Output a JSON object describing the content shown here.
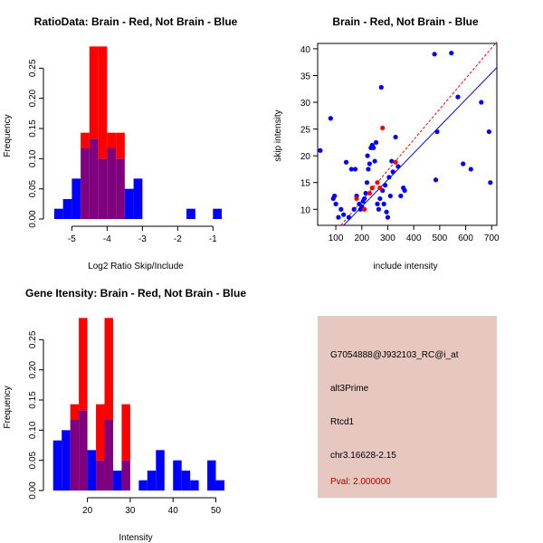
{
  "colors": {
    "red": "#ff0000",
    "blue": "#0000ff",
    "overlap": "#7f007f",
    "info_bg": "#e6c8c1",
    "pval": "#b00000"
  },
  "chart_data": [
    {
      "id": "ratio_hist",
      "type": "histogram",
      "title": "RatioData: Brain - Red, Not Brain - Blue",
      "xlabel": "Log2 Ratio Skip/Include",
      "ylabel": "Frequency",
      "xlim": [
        -5.6,
        -0.7
      ],
      "ylim": [
        0,
        0.3
      ],
      "xticks": [
        -5,
        -4,
        -3,
        -2,
        -1
      ],
      "xtick_labels": [
        "-5",
        "-4",
        "-3",
        "-2",
        "-1"
      ],
      "yticks": [
        0,
        0.05,
        0.1,
        0.15,
        0.2,
        0.25
      ],
      "ytick_labels": [
        "0.00",
        "0.05",
        "0.10",
        "0.15",
        "0.20",
        "0.25"
      ],
      "bins": [
        {
          "x0": -5.5,
          "x1": -5.25,
          "brain": 0,
          "not_brain": 0.017
        },
        {
          "x0": -5.25,
          "x1": -5.0,
          "brain": 0,
          "not_brain": 0.033
        },
        {
          "x0": -5.0,
          "x1": -4.75,
          "brain": 0,
          "not_brain": 0.067
        },
        {
          "x0": -4.75,
          "x1": -4.5,
          "brain": 0.143,
          "not_brain": 0.117
        },
        {
          "x0": -4.5,
          "x1": -4.25,
          "brain": 0.286,
          "not_brain": 0.133
        },
        {
          "x0": -4.25,
          "x1": -4.0,
          "brain": 0.286,
          "not_brain": 0.1
        },
        {
          "x0": -4.0,
          "x1": -3.75,
          "brain": 0.143,
          "not_brain": 0.117
        },
        {
          "x0": -3.75,
          "x1": -3.5,
          "brain": 0.143,
          "not_brain": 0.1
        },
        {
          "x0": -3.5,
          "x1": -3.25,
          "brain": 0,
          "not_brain": 0.05
        },
        {
          "x0": -3.25,
          "x1": -3.0,
          "brain": 0,
          "not_brain": 0.067
        },
        {
          "x0": -1.75,
          "x1": -1.5,
          "brain": 0,
          "not_brain": 0.017
        },
        {
          "x0": -1.0,
          "x1": -0.75,
          "brain": 0,
          "not_brain": 0.017
        }
      ]
    },
    {
      "id": "intensity_scatter",
      "type": "scatter",
      "title": "Brain - Red, Not Brain - Blue",
      "xlabel": "include intensity",
      "ylabel": "skip intensity",
      "xlim": [
        30,
        720
      ],
      "ylim": [
        7,
        41
      ],
      "xticks": [
        100,
        200,
        300,
        400,
        500,
        600,
        700
      ],
      "yticks": [
        10,
        15,
        20,
        25,
        30,
        35,
        40
      ],
      "series": [
        {
          "name": "Brain",
          "color": "#ff0000",
          "points": [
            [
              180,
              12
            ],
            [
              210,
              10
            ],
            [
              230,
              13
            ],
            [
              240,
              14
            ],
            [
              260,
              15
            ],
            [
              270,
              14
            ],
            [
              280,
              25.2
            ],
            [
              330,
              18.8
            ]
          ],
          "fit": {
            "x0": 120,
            "y0": 7,
            "x1": 720,
            "y1": 41.3
          }
        },
        {
          "name": "Not Brain",
          "color": "#0000ff",
          "points": [
            [
              40,
              21
            ],
            [
              80,
              27
            ],
            [
              90,
              12
            ],
            [
              95,
              12.5
            ],
            [
              100,
              11
            ],
            [
              110,
              8.5
            ],
            [
              120,
              10
            ],
            [
              130,
              9
            ],
            [
              140,
              18.8
            ],
            [
              150,
              8.5
            ],
            [
              160,
              17.5
            ],
            [
              170,
              10
            ],
            [
              175,
              17.5
            ],
            [
              180,
              12.5
            ],
            [
              190,
              11
            ],
            [
              195,
              10
            ],
            [
              200,
              10.5
            ],
            [
              205,
              11.5
            ],
            [
              210,
              12
            ],
            [
              215,
              13
            ],
            [
              220,
              15
            ],
            [
              222,
              20
            ],
            [
              225,
              17.5
            ],
            [
              230,
              18.5
            ],
            [
              235,
              21.5
            ],
            [
              240,
              22
            ],
            [
              245,
              21.5
            ],
            [
              250,
              19
            ],
            [
              255,
              22.5
            ],
            [
              260,
              11
            ],
            [
              265,
              10
            ],
            [
              270,
              12
            ],
            [
              275,
              32.8
            ],
            [
              280,
              13.5
            ],
            [
              285,
              11
            ],
            [
              290,
              14.5
            ],
            [
              295,
              9.5
            ],
            [
              300,
              8.5
            ],
            [
              305,
              16
            ],
            [
              310,
              12.5
            ],
            [
              315,
              19
            ],
            [
              320,
              17
            ],
            [
              330,
              23.5
            ],
            [
              340,
              18
            ],
            [
              350,
              12.5
            ],
            [
              360,
              14
            ],
            [
              365,
              13.5
            ],
            [
              480,
              39
            ],
            [
              485,
              15.5
            ],
            [
              490,
              24.5
            ],
            [
              545,
              39.2
            ],
            [
              570,
              31
            ],
            [
              590,
              18.5
            ],
            [
              620,
              17.5
            ],
            [
              660,
              30
            ],
            [
              690,
              24.5
            ],
            [
              695,
              15
            ]
          ],
          "fit": {
            "x0": 130,
            "y0": 7,
            "x1": 720,
            "y1": 36.5
          }
        }
      ]
    },
    {
      "id": "gene_hist",
      "type": "histogram",
      "title": "Gene Itensity: Brain - Red, Not Brain - Blue",
      "xlabel": "Intensity",
      "ylabel": "Frequency",
      "xlim": [
        11,
        52
      ],
      "ylim": [
        0,
        0.3
      ],
      "xticks": [
        20,
        30,
        40,
        50
      ],
      "xtick_labels": [
        "20",
        "30",
        "40",
        "50"
      ],
      "yticks": [
        0,
        0.05,
        0.1,
        0.15,
        0.2,
        0.25
      ],
      "ytick_labels": [
        "0.00",
        "0.05",
        "0.10",
        "0.15",
        "0.20",
        "0.25"
      ],
      "bins": [
        {
          "x0": 12,
          "x1": 14,
          "brain": 0,
          "not_brain": 0.083
        },
        {
          "x0": 14,
          "x1": 16,
          "brain": 0,
          "not_brain": 0.1
        },
        {
          "x0": 16,
          "x1": 18,
          "brain": 0.143,
          "not_brain": 0.117
        },
        {
          "x0": 18,
          "x1": 20,
          "brain": 0.286,
          "not_brain": 0.133
        },
        {
          "x0": 20,
          "x1": 22,
          "brain": 0,
          "not_brain": 0.067
        },
        {
          "x0": 22,
          "x1": 24,
          "brain": 0.143,
          "not_brain": 0.05
        },
        {
          "x0": 24,
          "x1": 26,
          "brain": 0.286,
          "not_brain": 0.117
        },
        {
          "x0": 26,
          "x1": 28,
          "brain": 0,
          "not_brain": 0.033
        },
        {
          "x0": 28,
          "x1": 30,
          "brain": 0.143,
          "not_brain": 0.05
        },
        {
          "x0": 32,
          "x1": 34,
          "brain": 0,
          "not_brain": 0.017
        },
        {
          "x0": 34,
          "x1": 36,
          "brain": 0,
          "not_brain": 0.033
        },
        {
          "x0": 36,
          "x1": 38,
          "brain": 0,
          "not_brain": 0.067
        },
        {
          "x0": 40,
          "x1": 42,
          "brain": 0,
          "not_brain": 0.05
        },
        {
          "x0": 42,
          "x1": 44,
          "brain": 0,
          "not_brain": 0.033
        },
        {
          "x0": 44,
          "x1": 46,
          "brain": 0,
          "not_brain": 0.017
        },
        {
          "x0": 48,
          "x1": 50,
          "brain": 0,
          "not_brain": 0.05
        },
        {
          "x0": 50,
          "x1": 52,
          "brain": 0,
          "not_brain": 0.017
        }
      ]
    }
  ],
  "info_panel": {
    "probe_id": "G7054888@J932103_RC@i_at",
    "event_type": "alt3Prime",
    "gene": "Rtcd1",
    "location": "chr3.16628-2.15",
    "pval": "Pval: 2.000000"
  }
}
